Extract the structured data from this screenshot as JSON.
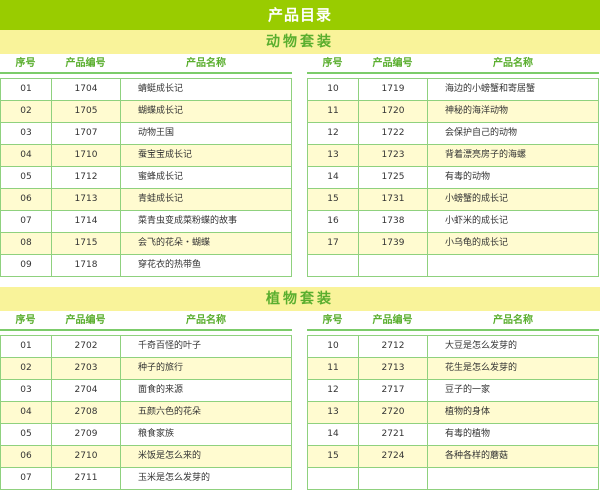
{
  "title": "产品目录",
  "columns": [
    "序号",
    "产品编号",
    "产品名称"
  ],
  "sections": [
    {
      "title": "动物套装",
      "left": [
        [
          "01",
          "1704",
          "蜻蜓成长记"
        ],
        [
          "02",
          "1705",
          "蝴蝶成长记"
        ],
        [
          "03",
          "1707",
          "动物王国"
        ],
        [
          "04",
          "1710",
          "蚕宝宝成长记"
        ],
        [
          "05",
          "1712",
          "蜜蜂成长记"
        ],
        [
          "06",
          "1713",
          "青蛙成长记"
        ],
        [
          "07",
          "1714",
          "菜青虫变成菜粉蝶的故事"
        ],
        [
          "08",
          "1715",
          "会飞的花朵・蝴蝶"
        ],
        [
          "09",
          "1718",
          "穿花衣的热带鱼"
        ]
      ],
      "right": [
        [
          "10",
          "1719",
          "海边的小螃蟹和寄居蟹"
        ],
        [
          "11",
          "1720",
          "神秘的海洋动物"
        ],
        [
          "12",
          "1722",
          "会保护自己的动物"
        ],
        [
          "13",
          "1723",
          "背着漂亮房子的海螺"
        ],
        [
          "14",
          "1725",
          "有毒的动物"
        ],
        [
          "15",
          "1731",
          "小螃蟹的成长记"
        ],
        [
          "16",
          "1738",
          "小虾米的成长记"
        ],
        [
          "17",
          "1739",
          "小乌龟的成长记"
        ],
        [
          "",
          "",
          ""
        ]
      ]
    },
    {
      "title": "植物套装",
      "left": [
        [
          "01",
          "2702",
          "千奇百怪的叶子"
        ],
        [
          "02",
          "2703",
          "种子的旅行"
        ],
        [
          "03",
          "2704",
          "面食的来源"
        ],
        [
          "04",
          "2708",
          "五颜六色的花朵"
        ],
        [
          "05",
          "2709",
          "粮食家族"
        ],
        [
          "06",
          "2710",
          "米饭是怎么来的"
        ],
        [
          "07",
          "2711",
          "玉米是怎么发芽的"
        ]
      ],
      "right": [
        [
          "10",
          "2712",
          "大豆是怎么发芽的"
        ],
        [
          "11",
          "2713",
          "花生是怎么发芽的"
        ],
        [
          "12",
          "2717",
          "豆子的一家"
        ],
        [
          "13",
          "2720",
          "植物的身体"
        ],
        [
          "14",
          "2721",
          "有毒的植物"
        ],
        [
          "15",
          "2724",
          "各种各样的蘑菇"
        ],
        [
          "",
          "",
          ""
        ]
      ]
    }
  ]
}
